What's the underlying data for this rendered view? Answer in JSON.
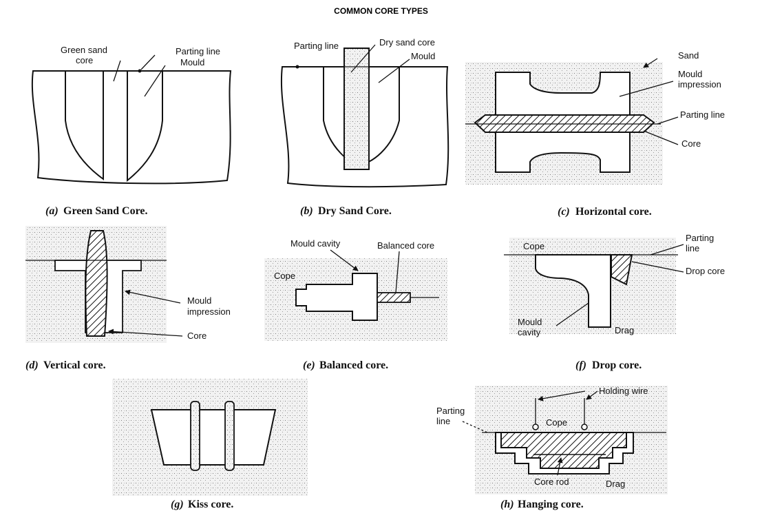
{
  "title": "COMMON CORE TYPES",
  "panels": {
    "a": {
      "caption_letter": "(a)",
      "caption": "Green Sand Core.",
      "labels": {
        "green_sand_core": "Green sand",
        "green_sand_core_2": "core",
        "parting_line": "Parting line",
        "mould": "Mould"
      }
    },
    "b": {
      "caption_letter": "(b)",
      "caption": "Dry Sand Core.",
      "labels": {
        "parting_line": "Parting line",
        "dry_sand_core": "Dry sand core",
        "mould": "Mould"
      }
    },
    "c": {
      "caption_letter": "(c)",
      "caption": "Horizontal core.",
      "labels": {
        "sand": "Sand",
        "mould_impression_1": "Mould",
        "mould_impression_2": "impression",
        "parting_line": "Parting line",
        "core": "Core"
      }
    },
    "d": {
      "caption_letter": "(d)",
      "caption": "Vertical core.",
      "labels": {
        "mould_impression_1": "Mould",
        "mould_impression_2": "impression",
        "core": "Core"
      }
    },
    "e": {
      "caption_letter": "(e)",
      "caption": "Balanced core.",
      "labels": {
        "mould_cavity": "Mould cavity",
        "balanced_core": "Balanced core",
        "cope": "Cope"
      }
    },
    "f": {
      "caption_letter": "(f)",
      "caption": "Drop core.",
      "labels": {
        "cope": "Cope",
        "parting_line_1": "Parting",
        "parting_line_2": "line",
        "drop_core": "Drop core",
        "mould_cavity_1": "Mould",
        "mould_cavity_2": "cavity",
        "drag": "Drag"
      }
    },
    "g": {
      "caption_letter": "(g)",
      "caption": "Kiss core."
    },
    "h": {
      "caption_letter": "(h)",
      "caption": "Hanging core.",
      "labels": {
        "holding_wire": "Holding wire",
        "parting_line_1": "Parting",
        "parting_line_2": "line",
        "cope": "Cope",
        "core_rod": "Core rod",
        "drag": "Drag"
      }
    }
  }
}
